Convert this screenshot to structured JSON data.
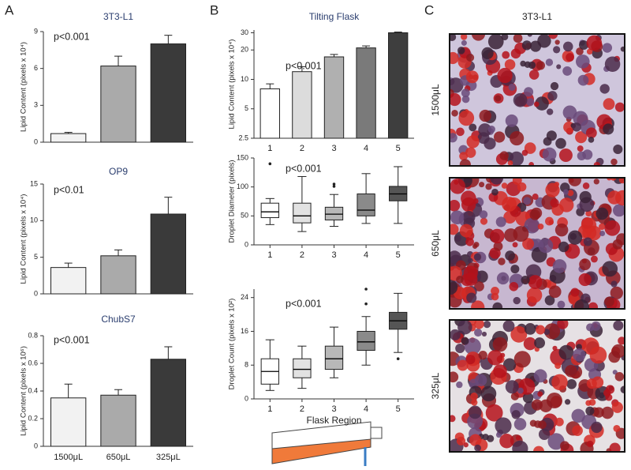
{
  "panel_labels": [
    "A",
    "B",
    "C"
  ],
  "chart_data": [
    {
      "type": "bar",
      "title": "3T3-L1",
      "y_label": "Lipid Content (pixels x 10⁴)",
      "annotation": "p<0.001",
      "values": [
        0.7,
        6.2,
        8.0
      ],
      "errors": [
        0.1,
        0.8,
        0.7
      ],
      "colors": [
        "#f2f2f2",
        "#aaaaaa",
        "#3a3a3a"
      ],
      "ylim": [
        0,
        9
      ],
      "yticks": [
        0,
        3,
        6,
        9
      ]
    },
    {
      "type": "bar",
      "title": "OP9",
      "y_label": "Lipid Content (pixels x 10⁴)",
      "annotation": "p<0.01",
      "values": [
        3.6,
        5.2,
        10.9
      ],
      "errors": [
        0.6,
        0.8,
        2.3
      ],
      "colors": [
        "#f2f2f2",
        "#aaaaaa",
        "#3a3a3a"
      ],
      "ylim": [
        0,
        15
      ],
      "yticks": [
        0,
        5,
        10,
        15
      ]
    },
    {
      "type": "bar",
      "title": "ChubS7",
      "y_label": "Lipid Content (pixels x 10⁶)",
      "annotation": "p<0.001",
      "categories": [
        "1500μL",
        "650μL",
        "325μL"
      ],
      "values": [
        0.35,
        0.37,
        0.63
      ],
      "errors": [
        0.1,
        0.04,
        0.09
      ],
      "colors": [
        "#f2f2f2",
        "#aaaaaa",
        "#3a3a3a"
      ],
      "ylim": [
        0,
        0.8
      ],
      "yticks": [
        0,
        0.2,
        0.4,
        0.6,
        0.8
      ]
    },
    {
      "type": "bar",
      "title": "Tilting Flask",
      "y_label": "Lipid Content (pixels x 10⁴)",
      "annotation": "p<0.001",
      "log_scale": true,
      "categories": [
        "1",
        "2",
        "3",
        "4",
        "5"
      ],
      "values": [
        8,
        12,
        17,
        21,
        30
      ],
      "errors": [
        1,
        1.5,
        1,
        1,
        0.5
      ],
      "colors": [
        "#ffffff",
        "#dcdcdc",
        "#b0b0b0",
        "#7a7a7a",
        "#3e3e3e"
      ],
      "ylim": [
        2.5,
        32
      ],
      "yticks": [
        2.5,
        5,
        10,
        20,
        30
      ]
    },
    {
      "type": "box",
      "y_label": "Droplet Diameter (pixels)",
      "annotation": "p<0.001",
      "categories": [
        "1",
        "2",
        "3",
        "4",
        "5"
      ],
      "boxes": [
        {
          "min": 35,
          "q1": 47,
          "median": 57,
          "q3": 72,
          "max": 80,
          "outliers": [
            140
          ]
        },
        {
          "min": 23,
          "q1": 38,
          "median": 50,
          "q3": 72,
          "max": 118,
          "outliers": []
        },
        {
          "min": 32,
          "q1": 43,
          "median": 53,
          "q3": 65,
          "max": 87,
          "outliers": [
            101,
            105
          ]
        },
        {
          "min": 37,
          "q1": 50,
          "median": 60,
          "q3": 88,
          "max": 123,
          "outliers": []
        },
        {
          "min": 37,
          "q1": 76,
          "median": 88,
          "q3": 101,
          "max": 135,
          "outliers": []
        }
      ],
      "colors": [
        "#ffffff",
        "#e2e2e2",
        "#b8b8b8",
        "#8a8a8a",
        "#555555"
      ],
      "ylim": [
        0,
        150
      ],
      "yticks": [
        0,
        50,
        100,
        150
      ]
    },
    {
      "type": "box",
      "y_label": "Droplet Count (pixels x 10²)",
      "x_label": "Flask Region",
      "annotation": "p<0.001",
      "categories": [
        "1",
        "2",
        "3",
        "4",
        "5"
      ],
      "boxes": [
        {
          "min": 2,
          "q1": 3.5,
          "median": 6.5,
          "q3": 9.5,
          "max": 14,
          "outliers": []
        },
        {
          "min": 2.5,
          "q1": 5,
          "median": 7,
          "q3": 9.5,
          "max": 12.5,
          "outliers": []
        },
        {
          "min": 5,
          "q1": 7,
          "median": 9.5,
          "q3": 12.5,
          "max": 17,
          "outliers": []
        },
        {
          "min": 8,
          "q1": 11.5,
          "median": 13.5,
          "q3": 16,
          "max": 19.5,
          "outliers": [
            22.5,
            26
          ]
        },
        {
          "min": 11,
          "q1": 16.5,
          "median": 18.5,
          "q3": 20.5,
          "max": 25,
          "outliers": [
            9.5
          ]
        }
      ],
      "colors": [
        "#ffffff",
        "#e2e2e2",
        "#b8b8b8",
        "#8a8a8a",
        "#555555"
      ],
      "ylim": [
        0,
        26
      ],
      "yticks": [
        0,
        8,
        16,
        24
      ]
    }
  ],
  "micrographs": {
    "title": "3T3-L1",
    "labels": [
      "1500μL",
      "650μL",
      "325μL"
    ]
  }
}
